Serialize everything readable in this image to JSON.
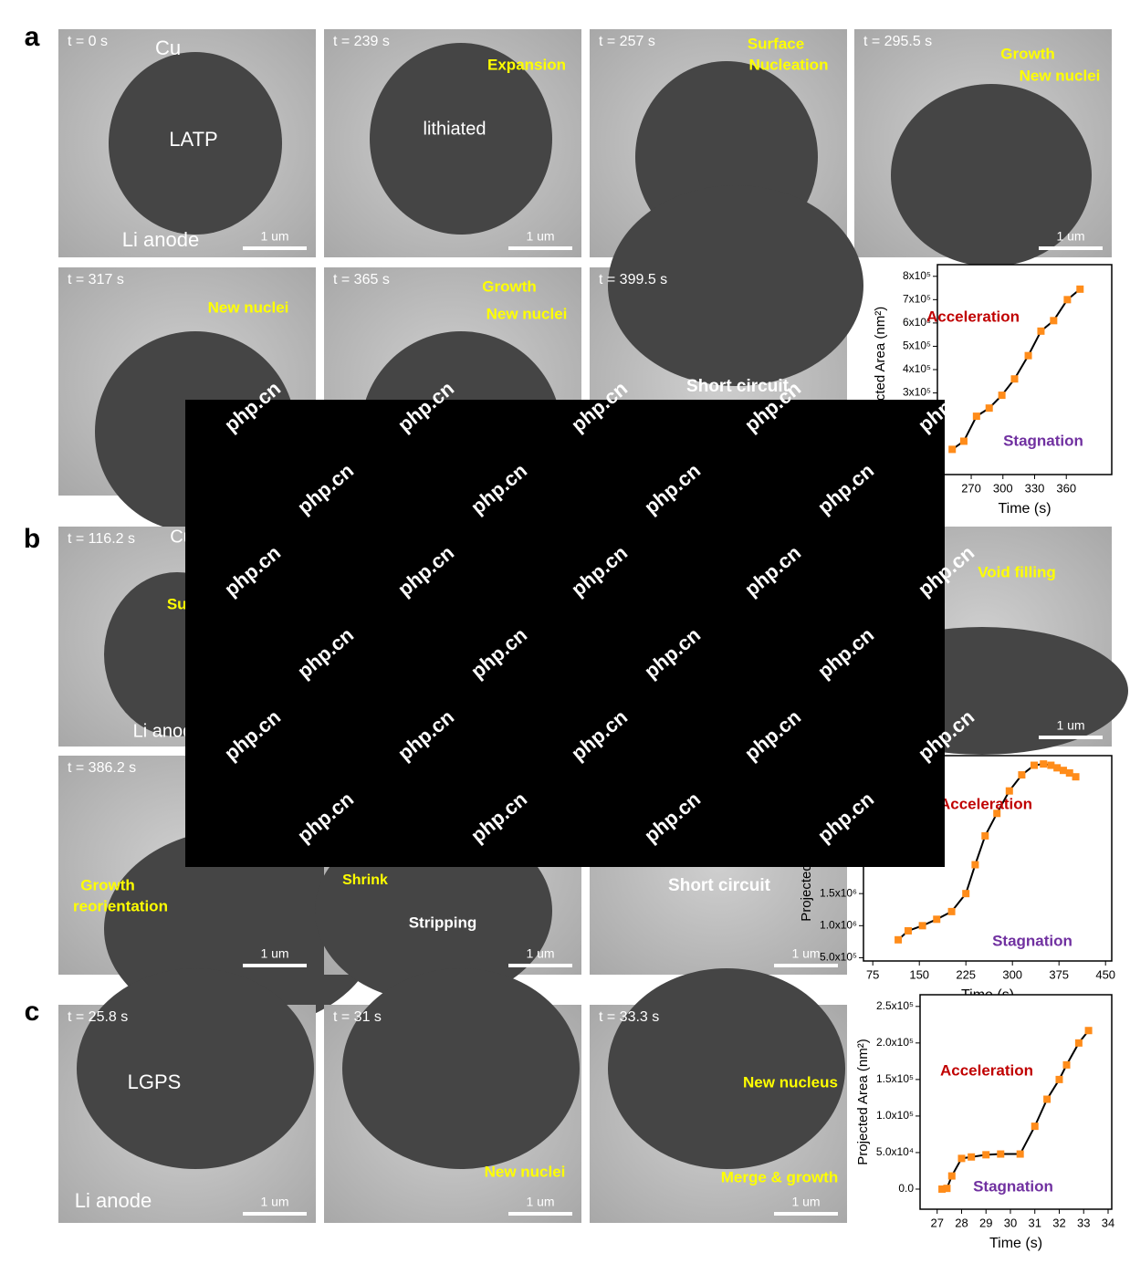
{
  "panel_letters": [
    "a",
    "b",
    "c"
  ],
  "scale_bar": "1 um",
  "watermark": "php.cn",
  "panels": [
    {
      "time": "t = 0 s",
      "labels": [
        "Cu",
        "LATP",
        "Li anode"
      ]
    },
    {
      "time": "t = 239 s",
      "labels": [
        "Expansion",
        "lithiated"
      ]
    },
    {
      "time": "t = 257 s",
      "labels": [
        "Surface",
        "Nucleation"
      ]
    },
    {
      "time": "t = 295.5 s",
      "labels": [
        "Growth",
        "New nuclei"
      ]
    },
    {
      "time": "t = 317 s",
      "labels": [
        "New nuclei"
      ]
    },
    {
      "time": "t = 365 s",
      "labels": [
        "Growth",
        "New nuclei"
      ]
    },
    {
      "time": "t = 399.5 s",
      "labels": [
        "Short circuit"
      ]
    },
    {
      "time": "t = 116.2 s",
      "labels": [
        "Cu",
        "Surface",
        "Li anode"
      ]
    },
    {
      "labels": [
        "Void filling"
      ]
    },
    {
      "time": "t = 386.2 s",
      "labels": [
        "Growth",
        "reorientation"
      ]
    },
    {
      "labels": [
        "Shrink",
        "Stripping"
      ]
    },
    {
      "labels": [
        "Short circuit"
      ]
    },
    {
      "time": "t = 25.8 s",
      "labels": [
        "LGPS",
        "Li anode"
      ]
    },
    {
      "time": "t = 31 s",
      "labels": [
        "New nuclei"
      ]
    },
    {
      "time": "t = 33.3 s",
      "labels": [
        "New nucleus",
        "Merge & growth"
      ]
    }
  ],
  "chart_data": [
    {
      "type": "line",
      "x_label": "Time (s)",
      "y_label": "Projected Area (nm²)",
      "color": "#ff8c1a",
      "x": [
        252,
        263,
        275,
        287,
        299,
        311,
        324,
        336,
        348,
        361,
        373
      ],
      "values": [
        58000,
        93000,
        200000,
        235000,
        290000,
        360000,
        460000,
        565000,
        610000,
        700000,
        745000
      ],
      "xlim": [
        238,
        403
      ],
      "xticks": [
        270,
        300,
        330,
        360
      ],
      "ylim": [
        -50000,
        850000
      ],
      "yticks": [
        {
          "value": 300000,
          "label": "3x10⁵"
        },
        {
          "value": 400000,
          "label": "4x10⁵"
        },
        {
          "value": 500000,
          "label": "5x10⁵"
        },
        {
          "value": 600000,
          "label": "6x10⁵"
        },
        {
          "value": 700000,
          "label": "7x10⁵"
        },
        {
          "value": 800000,
          "label": "8x10⁵"
        }
      ],
      "annotations": [
        "Acceleration",
        "Stagnation"
      ]
    },
    {
      "type": "line",
      "x_label": "Time (s)",
      "y_label": "Projected Area (nm²)",
      "color": "#ff8c1a",
      "x": [
        116,
        132,
        155,
        178,
        202,
        225,
        240,
        256,
        275,
        295,
        315,
        335,
        350,
        362,
        372,
        382,
        392,
        402
      ],
      "values": [
        780000,
        920000,
        1000000,
        1100000,
        1220000,
        1500000,
        1950000,
        2400000,
        2750000,
        3100000,
        3350000,
        3500000,
        3520000,
        3500000,
        3460000,
        3420000,
        3380000,
        3320000
      ],
      "xlim": [
        60,
        460
      ],
      "xticks": [
        75,
        150,
        225,
        300,
        375,
        450
      ],
      "ylim": [
        450000,
        3650000
      ],
      "yticks": [
        {
          "value": 500000,
          "label": "5.0x10⁵"
        },
        {
          "value": 1000000,
          "label": "1.0x10⁶"
        },
        {
          "value": 1500000,
          "label": "1.5x10⁶"
        }
      ],
      "annotations": [
        "Acceleration",
        "Stagnation"
      ]
    },
    {
      "type": "line",
      "x_label": "Time (s)",
      "y_label": "Projected Area (nm²)",
      "color": "#ff8c1a",
      "x": [
        27.2,
        27.4,
        27.6,
        28.0,
        28.4,
        29.0,
        29.6,
        30.4,
        31.0,
        31.5,
        32.0,
        32.3,
        32.8,
        33.2
      ],
      "values": [
        0,
        1000,
        18000,
        42000,
        44000,
        47000,
        48000,
        48000,
        86000,
        123000,
        150000,
        170000,
        200000,
        217000
      ],
      "xlim": [
        26.3,
        34.15
      ],
      "xticks": [
        27,
        28,
        29,
        30,
        31,
        32,
        33,
        34
      ],
      "ylim": [
        -27500,
        266000
      ],
      "yticks": [
        {
          "value": 0,
          "label": "0.0"
        },
        {
          "value": 50000,
          "label": "5.0x10⁴"
        },
        {
          "value": 100000,
          "label": "1.0x10⁵"
        },
        {
          "value": 150000,
          "label": "1.5x10⁵"
        },
        {
          "value": 200000,
          "label": "2.0x10⁵"
        },
        {
          "value": 250000,
          "label": "2.5x10⁵"
        }
      ],
      "annotations": [
        "Acceleration",
        "Stagnation"
      ]
    }
  ]
}
